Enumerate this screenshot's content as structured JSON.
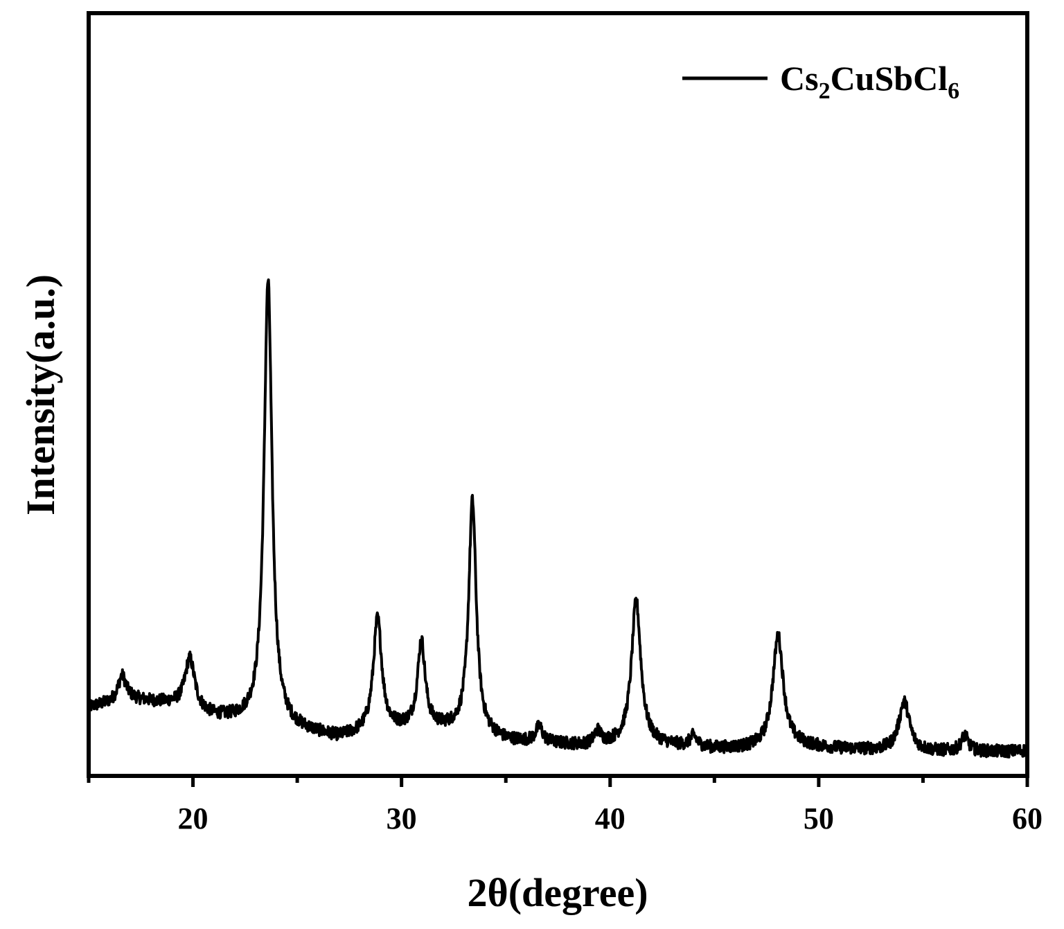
{
  "chart_data": {
    "type": "line",
    "xlabel": "2θ(degree)",
    "ylabel": "Intensity(a.u.)",
    "xlim": [
      15,
      60
    ],
    "ylim": [
      0,
      1
    ],
    "x_ticks": [
      20,
      30,
      40,
      50,
      60
    ],
    "y_ticks_labeled": false,
    "grid": false,
    "legend_position": "top-right",
    "line_color": "#000000",
    "background": "#ffffff",
    "series": [
      {
        "name": "Cs2CuSbCl6",
        "name_parts": {
          "a": "Cs",
          "a_sub": "2",
          "b": "CuSbCl",
          "b_sub": "6"
        },
        "baseline": [
          [
            15,
            0.105
          ],
          [
            17,
            0.12
          ],
          [
            19,
            0.11
          ],
          [
            21,
            0.085
          ],
          [
            23,
            0.075
          ],
          [
            25,
            0.06
          ],
          [
            27,
            0.045
          ],
          [
            29,
            0.06
          ],
          [
            31,
            0.065
          ],
          [
            33,
            0.06
          ],
          [
            35,
            0.04
          ],
          [
            37,
            0.035
          ],
          [
            39,
            0.03
          ],
          [
            41,
            0.035
          ],
          [
            43,
            0.03
          ],
          [
            45,
            0.025
          ],
          [
            47,
            0.025
          ],
          [
            49,
            0.03
          ],
          [
            51,
            0.025
          ],
          [
            53,
            0.022
          ],
          [
            55,
            0.02
          ],
          [
            57,
            0.02
          ],
          [
            59,
            0.02
          ],
          [
            60,
            0.022
          ]
        ],
        "peaks": [
          {
            "x": 16.6,
            "height": 0.048,
            "width": 0.35
          },
          {
            "x": 19.85,
            "height": 0.098,
            "width": 0.42
          },
          {
            "x": 23.6,
            "height": 0.855,
            "width": 0.34
          },
          {
            "x": 28.85,
            "height": 0.215,
            "width": 0.36
          },
          {
            "x": 30.95,
            "height": 0.165,
            "width": 0.32
          },
          {
            "x": 33.4,
            "height": 0.445,
            "width": 0.32
          },
          {
            "x": 36.6,
            "height": 0.03,
            "width": 0.3
          },
          {
            "x": 39.4,
            "height": 0.025,
            "width": 0.3
          },
          {
            "x": 41.25,
            "height": 0.275,
            "width": 0.4
          },
          {
            "x": 44.0,
            "height": 0.02,
            "width": 0.3
          },
          {
            "x": 48.05,
            "height": 0.215,
            "width": 0.45
          },
          {
            "x": 54.1,
            "height": 0.095,
            "width": 0.45
          },
          {
            "x": 57.0,
            "height": 0.03,
            "width": 0.3
          }
        ],
        "noise_amplitude": 0.012
      }
    ]
  }
}
